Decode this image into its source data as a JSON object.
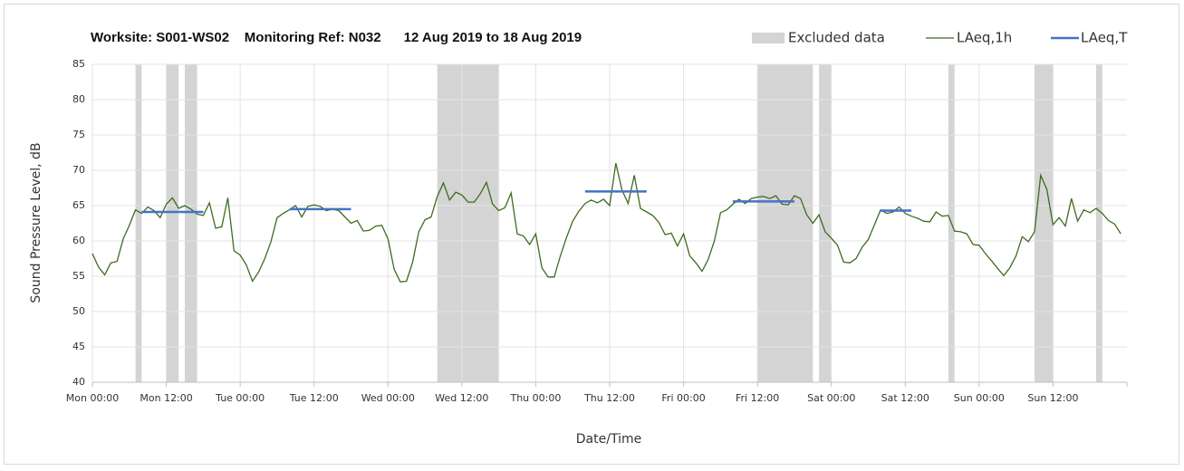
{
  "chart_data": {
    "type": "line",
    "title": "Worksite: S001-WS02    Monitoring Ref: N032      12 Aug 2019 to 18 Aug 2019",
    "xlabel": "Date/Time",
    "ylabel": "Sound Pressure Level, dB",
    "x": [
      0,
      1,
      2,
      3,
      4,
      5,
      6,
      7,
      8,
      9,
      10,
      11,
      12,
      13,
      14,
      15,
      16,
      17,
      18,
      19,
      20,
      21,
      22,
      23,
      24,
      25,
      26,
      27,
      28,
      29,
      30,
      31,
      32,
      33,
      34,
      35,
      36,
      37,
      38,
      39,
      40,
      41,
      42,
      43,
      44,
      45,
      46,
      47,
      48,
      49,
      50,
      51,
      52,
      53,
      54,
      55,
      56,
      57,
      58,
      59,
      60,
      61,
      62,
      63,
      64,
      65,
      66,
      67,
      68,
      69,
      70,
      71,
      72,
      73,
      74,
      75,
      76,
      77,
      78,
      79,
      80,
      81,
      82,
      83,
      84,
      85,
      86,
      87,
      88,
      89,
      90,
      91,
      92,
      93,
      94,
      95,
      96,
      97,
      98,
      99,
      100,
      101,
      102,
      103,
      104,
      105,
      106,
      107,
      108,
      109,
      110,
      111,
      112,
      113,
      114,
      115,
      116,
      117,
      118,
      119,
      120,
      121,
      122,
      123,
      124,
      125,
      126,
      127,
      128,
      129,
      130,
      131,
      132,
      133,
      134,
      135,
      136,
      137,
      138,
      139,
      140,
      141,
      142,
      143,
      144,
      145,
      146,
      147,
      148,
      149,
      150,
      151,
      152,
      153,
      154,
      155,
      156,
      157,
      158,
      159,
      160,
      161,
      162,
      163,
      164,
      165,
      166,
      167
    ],
    "series": [
      {
        "name": "LAeq,1h",
        "color": "#3d6b21",
        "values": [
          58.2,
          56.3,
          55.2,
          56.9,
          57.1,
          60.3,
          62.2,
          64.4,
          63.9,
          64.8,
          64.3,
          63.3,
          65.2,
          66.1,
          64.6,
          65.0,
          64.5,
          63.8,
          63.6,
          65.4,
          61.8,
          62.0,
          66.1,
          58.6,
          58.0,
          56.6,
          54.3,
          55.6,
          57.5,
          59.9,
          63.3,
          63.9,
          64.4,
          65.0,
          63.4,
          64.9,
          65.1,
          64.9,
          64.3,
          64.5,
          64.3,
          63.4,
          62.5,
          62.9,
          61.4,
          61.5,
          62.1,
          62.2,
          60.3,
          56.0,
          54.2,
          54.3,
          57.0,
          61.3,
          63.0,
          63.4,
          66.3,
          68.2,
          65.8,
          66.9,
          66.5,
          65.5,
          65.5,
          66.7,
          68.3,
          65.2,
          64.3,
          64.7,
          66.8,
          61.0,
          60.7,
          59.5,
          61.0,
          56.2,
          54.9,
          54.9,
          57.9,
          60.5,
          62.8,
          64.2,
          65.3,
          65.8,
          65.4,
          65.9,
          65.0,
          71.0,
          67.2,
          65.3,
          69.3,
          64.6,
          64.1,
          63.6,
          62.6,
          60.9,
          61.1,
          59.3,
          61.0,
          57.9,
          56.9,
          55.7,
          57.4,
          60.0,
          64.0,
          64.4,
          65.2,
          65.9,
          65.3,
          66.0,
          66.2,
          66.3,
          66.0,
          66.4,
          65.2,
          65.1,
          66.4,
          66.0,
          63.7,
          62.5,
          63.7,
          61.3,
          60.4,
          59.4,
          57.0,
          56.9,
          57.5,
          59.1,
          60.2,
          62.3,
          64.4,
          63.9,
          64.1,
          64.8,
          63.9,
          63.5,
          63.2,
          62.8,
          62.7,
          64.1,
          63.5,
          63.6,
          61.4,
          61.3,
          61.0,
          59.5,
          59.4,
          58.2,
          57.2,
          56.1,
          55.1,
          56.2,
          57.9,
          60.6,
          59.9,
          61.3,
          69.3,
          67.3,
          62.3,
          63.3,
          62.1,
          66.0,
          62.8,
          64.4,
          64.0,
          64.6,
          63.9,
          62.9,
          62.4,
          61.0
        ]
      }
    ],
    "excluded": {
      "name": "Excluded data",
      "color": "#d4d4d4",
      "ranges": [
        [
          7,
          8
        ],
        [
          12,
          14
        ],
        [
          15,
          17
        ],
        [
          56,
          66
        ],
        [
          108,
          117
        ],
        [
          118,
          120
        ],
        [
          139,
          140
        ],
        [
          153,
          156
        ],
        [
          163,
          164
        ]
      ]
    },
    "averages": {
      "name": "LAeq,T",
      "color": "#4472c4",
      "segments": [
        {
          "x": [
            8,
            18
          ],
          "value": 64.1
        },
        {
          "x": [
            32,
            42
          ],
          "value": 64.5
        },
        {
          "x": [
            80,
            90
          ],
          "value": 67.0
        },
        {
          "x": [
            104,
            114
          ],
          "value": 65.6
        },
        {
          "x": [
            128,
            133
          ],
          "value": 64.3
        }
      ]
    },
    "xlim": [
      0,
      168
    ],
    "xticks": [
      {
        "value": 0,
        "label": "Mon 00:00"
      },
      {
        "value": 12,
        "label": "Mon 12:00"
      },
      {
        "value": 24,
        "label": "Tue 00:00"
      },
      {
        "value": 36,
        "label": "Tue 12:00"
      },
      {
        "value": 48,
        "label": "Wed 00:00"
      },
      {
        "value": 60,
        "label": "Wed 12:00"
      },
      {
        "value": 72,
        "label": "Thu 00:00"
      },
      {
        "value": 84,
        "label": "Thu 12:00"
      },
      {
        "value": 96,
        "label": "Fri 00:00"
      },
      {
        "value": 108,
        "label": "Fri 12:00"
      },
      {
        "value": 120,
        "label": "Sat 00:00"
      },
      {
        "value": 132,
        "label": "Sat 12:00"
      },
      {
        "value": 144,
        "label": "Sun 00:00"
      },
      {
        "value": 156,
        "label": "Sun 12:00"
      }
    ],
    "ylim": [
      40,
      85
    ],
    "yticks": [
      40,
      45,
      50,
      55,
      60,
      65,
      70,
      75,
      80,
      85
    ],
    "grid": true,
    "legend": "top-right"
  }
}
